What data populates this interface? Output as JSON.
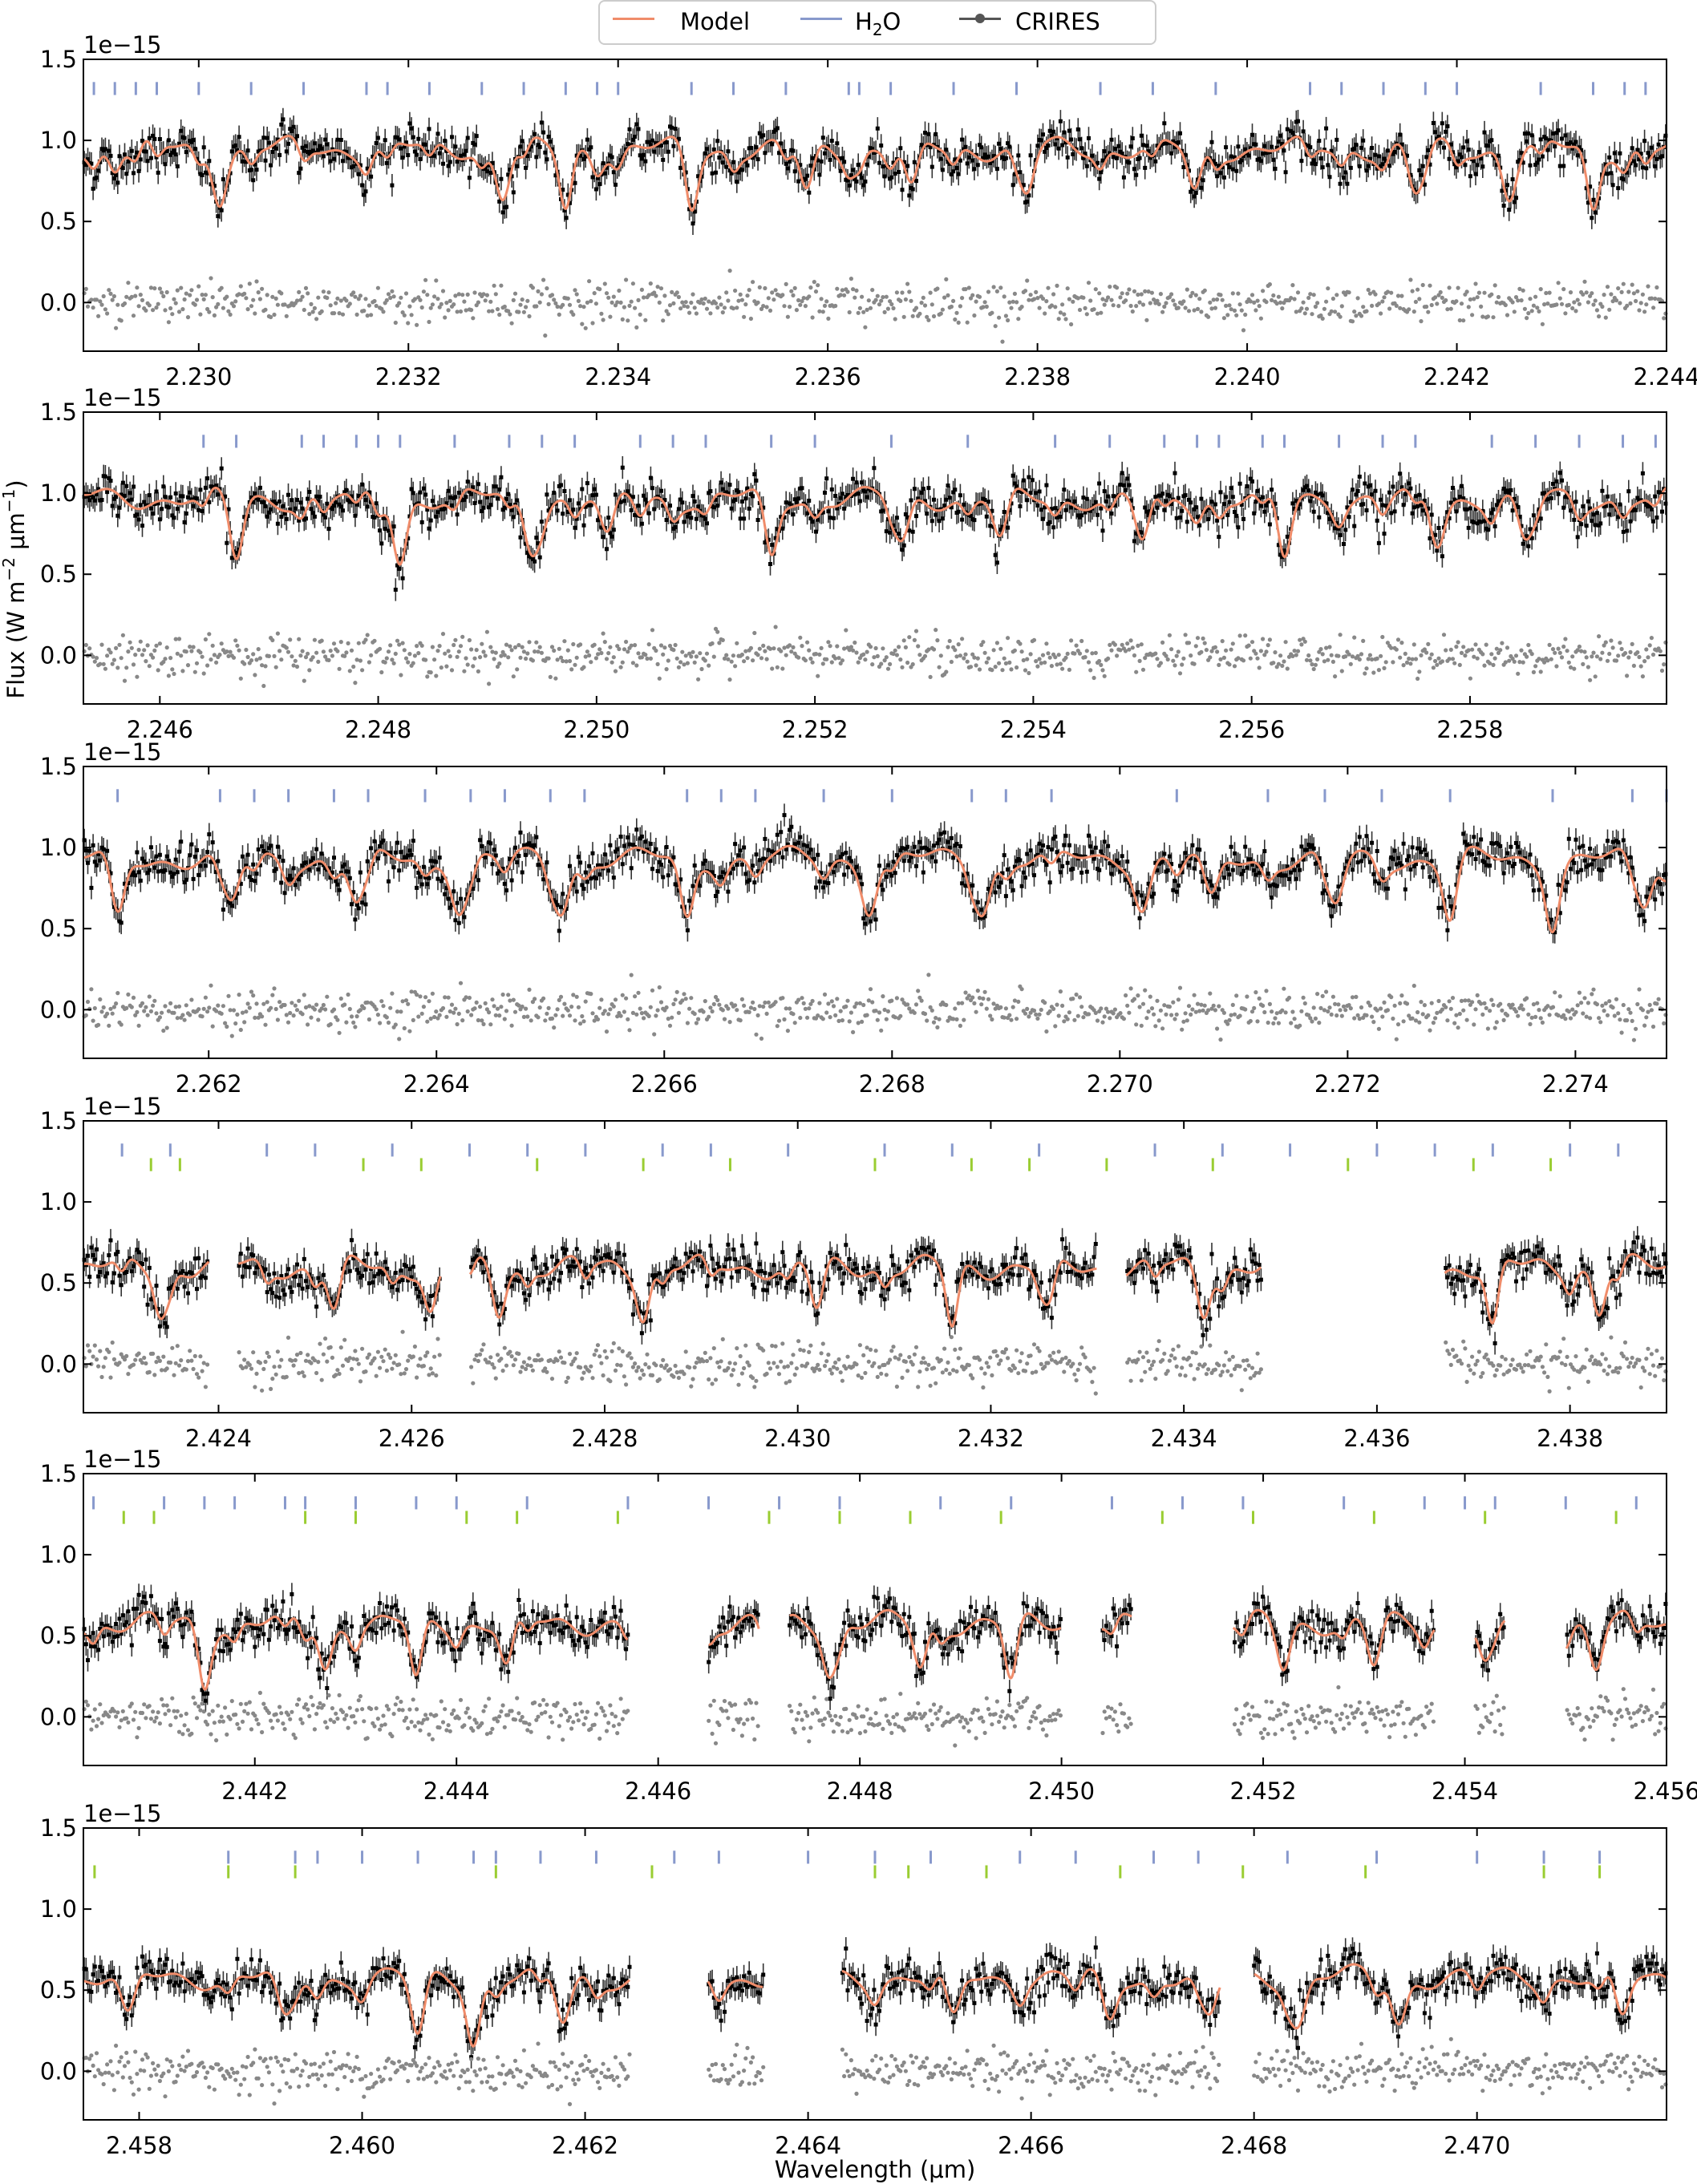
{
  "legend": {
    "model_label": "Model",
    "h2o_label": "H",
    "h2o_sub": "2",
    "h2o_tail": "O",
    "data_label": "CRIRES"
  },
  "colors": {
    "model": "#f08c6a",
    "h2o": "#8899cc",
    "second_species": "#9acd32",
    "data": "#000000",
    "residual": "#888888"
  },
  "ylabel": "Flux (W m$^{-2}$ μm$^{-1}$)",
  "ylabel_parts": [
    "Flux (W m",
    "−2",
    " μm",
    "−1",
    ")"
  ],
  "xlabel": "Wavelength (μm)",
  "offset_label": "1e−15",
  "chart_data": [
    {
      "type": "line",
      "xlim": [
        2.2289,
        2.244
      ],
      "ylim": [
        -0.3,
        1.5
      ],
      "yticks": [
        0.0,
        0.5,
        1.0,
        1.5
      ],
      "ytick_labels": [
        "0.0",
        "0.5",
        "1.0",
        "1.5"
      ],
      "xticks": [
        2.23,
        2.232,
        2.234,
        2.236,
        2.238,
        2.24,
        2.242,
        2.244
      ],
      "xtick_labels": [
        "2.230",
        "2.232",
        "2.234",
        "2.236",
        "2.238",
        "2.240",
        "2.242",
        "2.244"
      ],
      "continuum": 0.95,
      "model_gaps": [],
      "h2o_lines": [
        2.229,
        2.2292,
        2.2294,
        2.2296,
        2.23,
        2.2305,
        2.231,
        2.2316,
        2.2318,
        2.2322,
        2.2327,
        2.2331,
        2.2335,
        2.2338,
        2.234,
        2.2347,
        2.2351,
        2.2356,
        2.2362,
        2.2363,
        2.2366,
        2.2372,
        2.2378,
        2.2386,
        2.2391,
        2.2397,
        2.2406,
        2.2409,
        2.2413,
        2.2417,
        2.242,
        2.2428,
        2.2433,
        2.2436,
        2.2438
      ],
      "second_lines": [],
      "deep_lines": [
        2.2302,
        2.2329,
        2.2335,
        2.2347,
        2.2358,
        2.2368,
        2.2379,
        2.2395,
        2.2416,
        2.2425,
        2.2433
      ]
    },
    {
      "type": "line",
      "xlim": [
        2.2453,
        2.2598
      ],
      "ylim": [
        -0.3,
        1.5
      ],
      "yticks": [
        0.0,
        0.5,
        1.0,
        1.5
      ],
      "ytick_labels": [
        "0.0",
        "0.5",
        "1.0",
        "1.5"
      ],
      "xticks": [
        2.246,
        2.248,
        2.25,
        2.252,
        2.254,
        2.256,
        2.258
      ],
      "xtick_labels": [
        "2.246",
        "2.248",
        "2.250",
        "2.252",
        "2.254",
        "2.256",
        "2.258"
      ],
      "continuum": 0.97,
      "model_gaps": [],
      "h2o_lines": [
        2.2464,
        2.2467,
        2.2473,
        2.2475,
        2.2478,
        2.248,
        2.2482,
        2.2487,
        2.2492,
        2.2495,
        2.2498,
        2.2504,
        2.2507,
        2.251,
        2.2516,
        2.252,
        2.2527,
        2.2534,
        2.2542,
        2.2547,
        2.2552,
        2.2555,
        2.2557,
        2.2561,
        2.2563,
        2.2568,
        2.2572,
        2.2575,
        2.2582,
        2.2586,
        2.259,
        2.2594,
        2.2597
      ],
      "second_lines": [],
      "deep_lines": [
        2.2467,
        2.2482,
        2.2494,
        2.2501,
        2.2516,
        2.2528,
        2.2537,
        2.255,
        2.2563,
        2.2577,
        2.2585
      ]
    },
    {
      "type": "line",
      "xlim": [
        2.2609,
        2.2748
      ],
      "ylim": [
        -0.3,
        1.5
      ],
      "yticks": [
        0.0,
        0.5,
        1.0,
        1.5
      ],
      "ytick_labels": [
        "0.0",
        "0.5",
        "1.0",
        "1.5"
      ],
      "xticks": [
        2.262,
        2.264,
        2.266,
        2.268,
        2.27,
        2.272,
        2.274
      ],
      "xtick_labels": [
        "2.262",
        "2.264",
        "2.266",
        "2.268",
        "2.270",
        "2.272",
        "2.274"
      ],
      "continuum": 0.93,
      "model_gaps": [],
      "h2o_lines": [
        2.2612,
        2.2621,
        2.2624,
        2.2627,
        2.2631,
        2.2634,
        2.2639,
        2.2643,
        2.2646,
        2.265,
        2.2653,
        2.2662,
        2.2665,
        2.2668,
        2.2674,
        2.268,
        2.2687,
        2.269,
        2.2694,
        2.2705,
        2.2713,
        2.2718,
        2.2723,
        2.2729,
        2.2738,
        2.2745,
        2.2748
      ],
      "second_lines": [],
      "deep_lines": [
        2.2612,
        2.2622,
        2.2633,
        2.2642,
        2.2651,
        2.2662,
        2.2678,
        2.2688,
        2.2702,
        2.2708,
        2.2719,
        2.2729,
        2.2738,
        2.2746
      ]
    },
    {
      "type": "line",
      "xlim": [
        2.4226,
        2.439
      ],
      "ylim": [
        -0.3,
        1.5
      ],
      "yticks": [
        0.0,
        0.5,
        1.0,
        1.5
      ],
      "ytick_labels": [
        "0.0",
        "0.5",
        "1.0",
        "1.5"
      ],
      "xticks": [
        2.424,
        2.426,
        2.428,
        2.43,
        2.432,
        2.434,
        2.436,
        2.438
      ],
      "xtick_labels": [
        "2.424",
        "2.426",
        "2.428",
        "2.430",
        "2.432",
        "2.434",
        "2.436",
        "2.438"
      ],
      "continuum": 0.6,
      "model_gaps": [
        [
          2.4239,
          2.4242
        ],
        [
          2.4263,
          2.4266
        ],
        [
          2.4331,
          2.4334
        ],
        [
          2.4348,
          2.4351
        ],
        [
          2.4351,
          2.4367
        ]
      ],
      "h2o_lines": [
        2.423,
        2.4235,
        2.4245,
        2.425,
        2.4258,
        2.4266,
        2.4272,
        2.4278,
        2.4286,
        2.4291,
        2.4299,
        2.4309,
        2.4316,
        2.4325,
        2.4337,
        2.4344,
        2.4351,
        2.436,
        2.4366,
        2.4372,
        2.438,
        2.4385
      ],
      "second_lines": [
        2.4233,
        2.4236,
        2.4255,
        2.4261,
        2.4273,
        2.4284,
        2.4293,
        2.4308,
        2.4318,
        2.4324,
        2.4332,
        2.4343,
        2.4357,
        2.437,
        2.4378
      ],
      "deep_lines": [
        2.4234,
        2.4252,
        2.4262,
        2.4269,
        2.4284,
        2.4302,
        2.4316,
        2.4326,
        2.4342,
        2.4372,
        2.4383
      ]
    },
    {
      "type": "line",
      "xlim": [
        2.4403,
        2.456
      ],
      "ylim": [
        -0.3,
        1.5
      ],
      "yticks": [
        0.0,
        0.5,
        1.0,
        1.5
      ],
      "ytick_labels": [
        "0.0",
        "0.5",
        "1.0",
        "1.5"
      ],
      "xticks": [
        2.442,
        2.444,
        2.446,
        2.448,
        2.45,
        2.452,
        2.454,
        2.456
      ],
      "xtick_labels": [
        "2.442",
        "2.444",
        "2.446",
        "2.448",
        "2.450",
        "2.452",
        "2.454",
        "2.456"
      ],
      "continuum": 0.58,
      "model_gaps": [
        [
          2.4457,
          2.4465
        ],
        [
          2.447,
          2.4473
        ],
        [
          2.45,
          2.4504
        ],
        [
          2.4507,
          2.4517
        ],
        [
          2.4537,
          2.4541
        ],
        [
          2.4544,
          2.455
        ]
      ],
      "h2o_lines": [
        2.4404,
        2.4411,
        2.4415,
        2.4418,
        2.4423,
        2.4425,
        2.443,
        2.4436,
        2.444,
        2.4447,
        2.4457,
        2.4465,
        2.4472,
        2.4478,
        2.4488,
        2.4495,
        2.4505,
        2.4512,
        2.4518,
        2.4528,
        2.4536,
        2.454,
        2.4543,
        2.455,
        2.4557
      ],
      "second_lines": [
        2.4407,
        2.441,
        2.4425,
        2.443,
        2.4441,
        2.4446,
        2.4456,
        2.4471,
        2.4478,
        2.4485,
        2.4494,
        2.451,
        2.4519,
        2.4531,
        2.4542,
        2.4555
      ],
      "deep_lines": [
        2.4415,
        2.4427,
        2.4436,
        2.4445,
        2.4471,
        2.4477,
        2.4486,
        2.4495,
        2.4522,
        2.4531,
        2.4542,
        2.4553
      ]
    },
    {
      "type": "line",
      "xlim": [
        2.4575,
        2.4717
      ],
      "ylim": [
        -0.3,
        1.5
      ],
      "yticks": [
        0.0,
        0.5,
        1.0,
        1.5
      ],
      "ytick_labels": [
        "0.0",
        "0.5",
        "1.0",
        "1.5"
      ],
      "xticks": [
        2.458,
        2.46,
        2.462,
        2.464,
        2.466,
        2.468,
        2.47
      ],
      "xtick_labels": [
        "2.458",
        "2.460",
        "2.462",
        "2.464",
        "2.466",
        "2.468",
        "2.470"
      ],
      "continuum": 0.58,
      "model_gaps": [
        [
          2.4624,
          2.4631
        ],
        [
          2.4636,
          2.4643
        ],
        [
          2.4677,
          2.468
        ]
      ],
      "h2o_lines": [
        2.4588,
        2.4594,
        2.4596,
        2.46,
        2.4605,
        2.461,
        2.4612,
        2.4616,
        2.4621,
        2.4628,
        2.4632,
        2.464,
        2.4646,
        2.4651,
        2.4659,
        2.4664,
        2.4671,
        2.4675,
        2.4683,
        2.4691,
        2.47,
        2.4706,
        2.4711
      ],
      "second_lines": [
        2.4576,
        2.4588,
        2.4594,
        2.4612,
        2.4626,
        2.4646,
        2.4649,
        2.4656,
        2.4668,
        2.4679,
        2.469,
        2.4706,
        2.4711
      ],
      "deep_lines": [
        2.4579,
        2.4593,
        2.4605,
        2.461,
        2.4618,
        2.4639,
        2.4653,
        2.4667,
        2.4676,
        2.4684,
        2.4693,
        2.4713
      ]
    }
  ]
}
